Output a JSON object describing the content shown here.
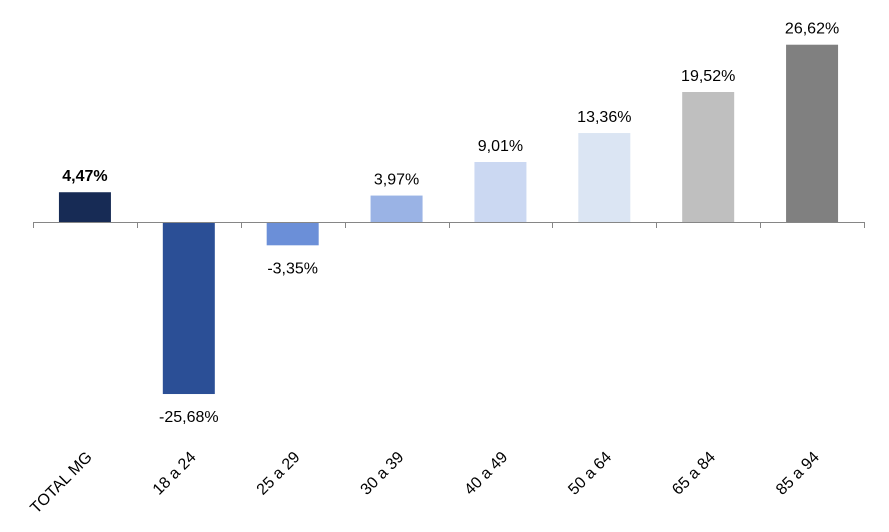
{
  "chart_data": {
    "type": "bar",
    "title": "",
    "xlabel": "",
    "ylabel": "",
    "ylim": [
      -30,
      30
    ],
    "grid": false,
    "legend": "none",
    "categories": [
      "TOTAL MG",
      "18 a 24",
      "25 a 29",
      "30 a 39",
      "40 a 49",
      "50 a 64",
      "65 a 84",
      "85 a 94"
    ],
    "values": [
      4.47,
      -25.68,
      -3.35,
      3.97,
      9.01,
      13.36,
      19.52,
      26.62
    ],
    "labels": [
      "4,47%",
      "-25,68%",
      "-3,35%",
      "3,97%",
      "9,01%",
      "13,36%",
      "19,52%",
      "26,62%"
    ],
    "colors": [
      "#172b55",
      "#2b4f96",
      "#6b8fd8",
      "#9ab3e5",
      "#cbd8f2",
      "#dbe5f3",
      "#bfbfbf",
      "#808080"
    ],
    "highlight_index": 0
  }
}
